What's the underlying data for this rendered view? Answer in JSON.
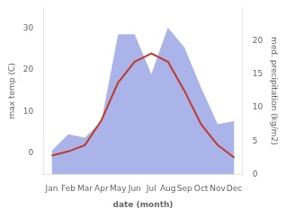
{
  "chart_data": {
    "type": "line",
    "categories": [
      "Jan",
      "Feb",
      "Mar",
      "Apr",
      "May",
      "Jun",
      "Jul",
      "Aug",
      "Sep",
      "Oct",
      "Nov",
      "Dec"
    ],
    "xlabel": "date (month)",
    "ylabel": "max temp (C)",
    "y2label": "med. precipitation (kg/m2)",
    "series": [
      {
        "type": "area",
        "color": "#aab4e8",
        "axis": "y2",
        "values": [
          3.5,
          6.0,
          5.5,
          8.0,
          21.0,
          21.0,
          15.0,
          22.0,
          19.0,
          13.0,
          7.5,
          8.0
        ]
      },
      {
        "type": "line",
        "color": "#c0392b",
        "values": [
          -0.5,
          0.5,
          2.0,
          8.0,
          17.0,
          22.0,
          24.0,
          22.0,
          15.0,
          7.0,
          2.0,
          -1.0
        ]
      }
    ],
    "ylim": [
      -5,
      35
    ],
    "yticks": [
      0,
      10,
      20,
      30
    ],
    "y2lim": [
      0,
      25
    ],
    "y2ticks": [
      0,
      5,
      10,
      15,
      20
    ],
    "grid": false
  }
}
